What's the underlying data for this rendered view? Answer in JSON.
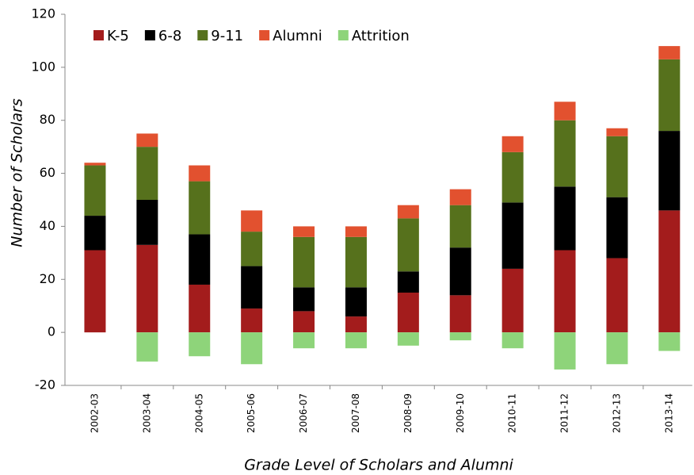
{
  "chart_data": {
    "type": "bar",
    "stacked": true,
    "x_label": "Grade Level of Scholars and Alumni",
    "y_label": "Number of Scholars",
    "categories": [
      "2002-03",
      "2003-04",
      "2004-05",
      "2005-06",
      "2006-07",
      "2007-08",
      "2008-09",
      "2009-10",
      "2010-11",
      "2011-12",
      "2012-13",
      "2013-14"
    ],
    "series": [
      {
        "name": "K-5",
        "color": "#a31c1c",
        "values": [
          31,
          33,
          18,
          9,
          8,
          6,
          15,
          14,
          24,
          31,
          28,
          46
        ]
      },
      {
        "name": "6-8",
        "color": "#000000",
        "values": [
          13,
          17,
          19,
          16,
          9,
          11,
          8,
          18,
          25,
          24,
          23,
          30
        ]
      },
      {
        "name": "9-11",
        "color": "#56711c",
        "values": [
          19,
          20,
          20,
          13,
          19,
          19,
          20,
          16,
          19,
          25,
          23,
          27
        ]
      },
      {
        "name": "Alumni",
        "color": "#e2512f",
        "values": [
          1,
          5,
          6,
          8,
          4,
          4,
          5,
          6,
          6,
          7,
          3,
          5
        ]
      },
      {
        "name": "Attrition",
        "color": "#8ed47a",
        "values": [
          0,
          -11,
          -9,
          -12,
          -6,
          -6,
          -5,
          -3,
          -6,
          -14,
          -12,
          -7
        ]
      }
    ],
    "ylim": [
      -20,
      120
    ],
    "yticks": [
      -20,
      0,
      20,
      40,
      60,
      80,
      100,
      120
    ]
  }
}
